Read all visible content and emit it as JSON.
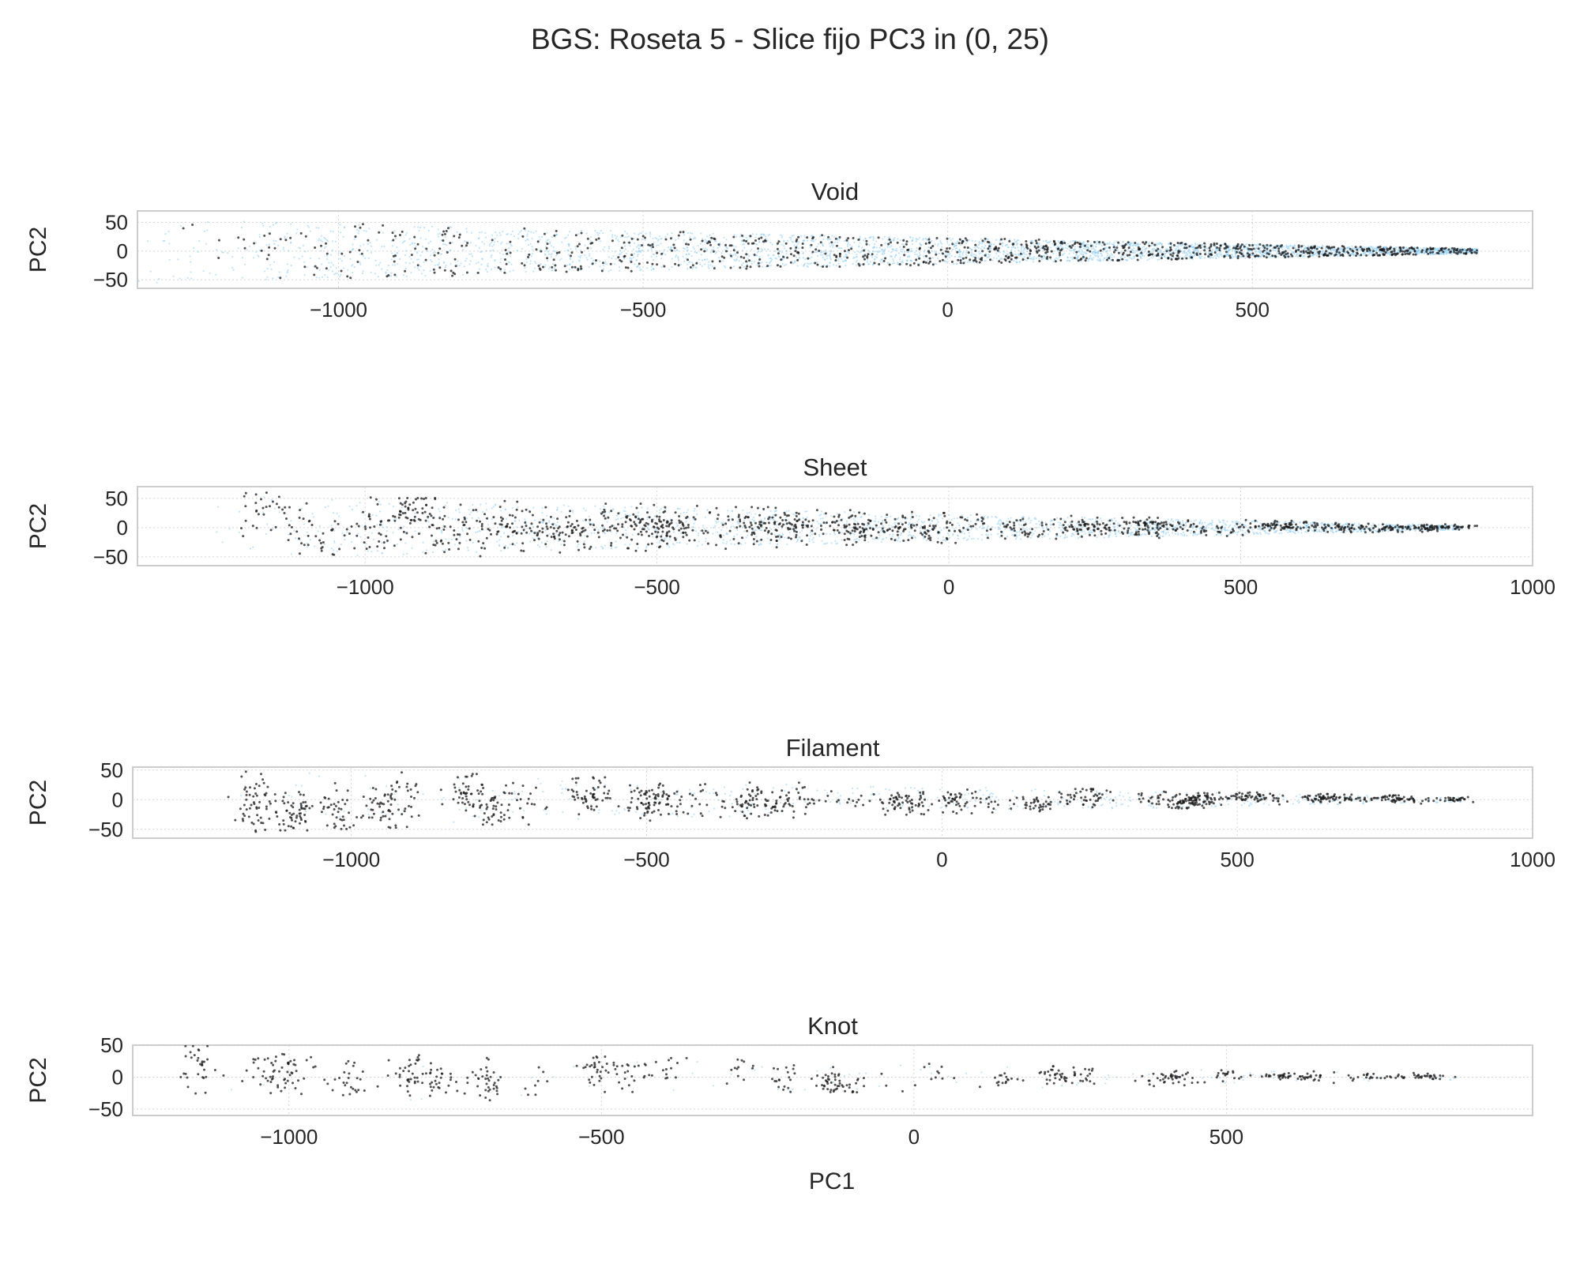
{
  "chart_data": {
    "type": "scatter",
    "title": "BGS: Roseta 5 - Slice fijo PC3 in (0, 25)",
    "xlabel": "PC1",
    "ylabel": "PC2",
    "colors": {
      "background_points": "#8ecdf5",
      "highlight_points": "#1a1a1a"
    },
    "grid": true,
    "panels": [
      {
        "title": "Void",
        "xlim": [
          -1330,
          960
        ],
        "ylim": [
          -65,
          70
        ],
        "xticks": [
          -1000,
          -500,
          0,
          500
        ],
        "yticks": [
          -50,
          0,
          50
        ],
        "xtick_labels": [
          "−1000",
          "−500",
          "0",
          "500"
        ],
        "ytick_labels": [
          "−50",
          "0",
          "50"
        ],
        "background": {
          "n": 3200,
          "xmin": -1330,
          "xmax": 870,
          "ymax_left": 55,
          "ymax_right": 4,
          "clusters": 0,
          "seed": 11
        },
        "highlight": {
          "n": 950,
          "xmin": -1280,
          "xmax": 870,
          "ymax_left": 55,
          "ymax_right": 4,
          "clusters": 0,
          "seed": 23
        }
      },
      {
        "title": "Sheet",
        "xlim": [
          -1390,
          1000
        ],
        "ylim": [
          -65,
          70
        ],
        "xticks": [
          -1000,
          -500,
          0,
          500,
          1000
        ],
        "yticks": [
          -50,
          0,
          50
        ],
        "xtick_labels": [
          "−1000",
          "−500",
          "0",
          "500",
          "1000"
        ],
        "ytick_labels": [
          "−50",
          "0",
          "50"
        ],
        "background": {
          "n": 1800,
          "xmin": -1320,
          "xmax": 880,
          "ymax_left": 55,
          "ymax_right": 4,
          "clusters": 0,
          "seed": 37
        },
        "highlight": {
          "n": 1300,
          "xmin": -1180,
          "xmax": 890,
          "ymax_left": 55,
          "ymax_right": 4,
          "clusters": 46,
          "spread": 0.55,
          "seed": 41
        }
      },
      {
        "title": "Filament",
        "xlim": [
          -1370,
          1000
        ],
        "ylim": [
          -65,
          55
        ],
        "xticks": [
          -1000,
          -500,
          0,
          500,
          1000
        ],
        "yticks": [
          -50,
          0,
          50
        ],
        "xtick_labels": [
          "−1000",
          "−500",
          "0",
          "500",
          "1000"
        ],
        "ytick_labels": [
          "−50",
          "0",
          "50"
        ],
        "background": {
          "n": 420,
          "xmin": -1300,
          "xmax": 880,
          "ymax_left": 50,
          "ymax_right": 4,
          "clusters": 0,
          "seed": 53
        },
        "highlight": {
          "n": 1150,
          "xmin": -1180,
          "xmax": 890,
          "ymax_left": 50,
          "ymax_right": 4,
          "clusters": 34,
          "spread": 0.3,
          "seed": 67
        }
      },
      {
        "title": "Knot",
        "xlim": [
          -1250,
          990
        ],
        "ylim": [
          -60,
          50
        ],
        "xticks": [
          -1000,
          -500,
          0,
          500
        ],
        "yticks": [
          -50,
          0,
          50
        ],
        "xtick_labels": [
          "−1000",
          "−500",
          "0",
          "500"
        ],
        "ytick_labels": [
          "−50",
          "0",
          "50"
        ],
        "background": {
          "n": 90,
          "xmin": -1180,
          "xmax": 880,
          "ymax_left": 45,
          "ymax_right": 4,
          "clusters": 0,
          "seed": 71
        },
        "highlight": {
          "n": 620,
          "xmin": -1170,
          "xmax": 890,
          "ymax_left": 45,
          "ymax_right": 4,
          "clusters": 28,
          "spread": 0.22,
          "seed": 83
        }
      }
    ]
  }
}
